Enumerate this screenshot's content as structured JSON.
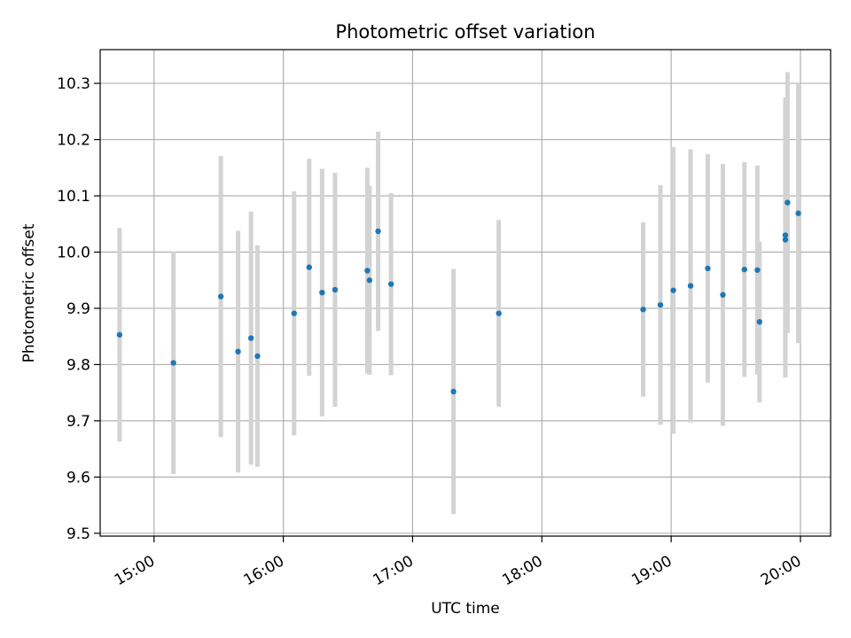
{
  "chart_data": {
    "type": "scatter",
    "title": "Photometric offset variation",
    "xlabel": "UTC time",
    "ylabel": "Photometric offset",
    "x_tick_labels": [
      "15:00",
      "16:00",
      "17:00",
      "18:00",
      "19:00",
      "20:00"
    ],
    "y_tick_labels": [
      "9.5",
      "9.6",
      "9.7",
      "9.8",
      "9.9",
      "10.0",
      "10.1",
      "10.2",
      "10.3"
    ],
    "x_ticks": [
      "15:00",
      "16:00",
      "17:00",
      "18:00",
      "19:00",
      "20:00"
    ],
    "y_ticks": [
      9.5,
      9.6,
      9.7,
      9.8,
      9.9,
      10.0,
      10.1,
      10.2,
      10.3
    ],
    "xlim": [
      "14:35",
      "20:14"
    ],
    "ylim": [
      9.495,
      10.36
    ],
    "grid": true,
    "point_color": "#1f77b4",
    "errorbar_color": "#d3d3d3",
    "points": [
      {
        "x": "14:44",
        "y": 9.853,
        "yerr": 0.19
      },
      {
        "x": "15:09",
        "y": 9.803,
        "yerr": 0.198
      },
      {
        "x": "15:31",
        "y": 9.921,
        "yerr": 0.25
      },
      {
        "x": "15:39",
        "y": 9.823,
        "yerr": 0.215
      },
      {
        "x": "15:45",
        "y": 9.847,
        "yerr": 0.225
      },
      {
        "x": "15:48",
        "y": 9.815,
        "yerr": 0.197
      },
      {
        "x": "16:05",
        "y": 9.891,
        "yerr": 0.217
      },
      {
        "x": "16:12",
        "y": 9.973,
        "yerr": 0.193
      },
      {
        "x": "16:18",
        "y": 9.928,
        "yerr": 0.22
      },
      {
        "x": "16:24",
        "y": 9.933,
        "yerr": 0.208
      },
      {
        "x": "16:39",
        "y": 9.967,
        "yerr": 0.183
      },
      {
        "x": "16:40",
        "y": 9.95,
        "yerr": 0.168
      },
      {
        "x": "16:44",
        "y": 10.037,
        "yerr": 0.177
      },
      {
        "x": "16:50",
        "y": 9.943,
        "yerr": 0.162
      },
      {
        "x": "17:19",
        "y": 9.752,
        "yerr": 0.218
      },
      {
        "x": "17:40",
        "y": 9.891,
        "yerr": 0.166
      },
      {
        "x": "18:47",
        "y": 9.898,
        "yerr": 0.155
      },
      {
        "x": "18:55",
        "y": 9.906,
        "yerr": 0.213
      },
      {
        "x": "19:01",
        "y": 9.932,
        "yerr": 0.255
      },
      {
        "x": "19:09",
        "y": 9.94,
        "yerr": 0.243
      },
      {
        "x": "19:17",
        "y": 9.971,
        "yerr": 0.203
      },
      {
        "x": "19:24",
        "y": 9.924,
        "yerr": 0.233
      },
      {
        "x": "19:34",
        "y": 9.969,
        "yerr": 0.191
      },
      {
        "x": "19:40",
        "y": 9.968,
        "yerr": 0.186
      },
      {
        "x": "19:41",
        "y": 9.876,
        "yerr": 0.143
      },
      {
        "x": "19:53",
        "y": 10.022,
        "yerr": 0.245
      },
      {
        "x": "19:53",
        "y": 10.03,
        "yerr": 0.245
      },
      {
        "x": "19:54",
        "y": 10.088,
        "yerr": 0.232
      },
      {
        "x": "19:59",
        "y": 10.069,
        "yerr": 0.231
      }
    ]
  }
}
